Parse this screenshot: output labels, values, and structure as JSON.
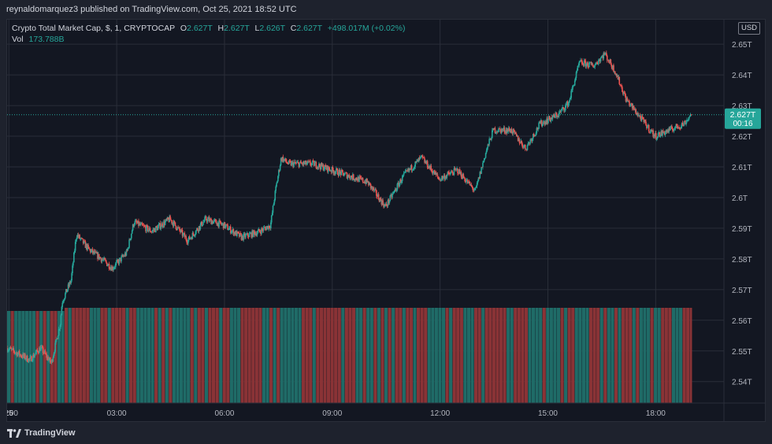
{
  "header": {
    "published_text": "reynaldomarquez3 published on TradingView.com, Oct 25, 2021 18:52 UTC"
  },
  "legend": {
    "symbol": "Crypto Total Market Cap, $, 1, CRYPTOCAP",
    "open_label": "O",
    "open_value": "2.627T",
    "high_label": "H",
    "high_value": "2.627T",
    "low_label": "L",
    "low_value": "2.626T",
    "close_label": "C",
    "close_value": "2.627T",
    "change": "+498.017M (+0.02%)",
    "vol_label": "Vol",
    "vol_value": "173.788B"
  },
  "scale": {
    "currency": "USD"
  },
  "price_tag": {
    "price": "2.627T",
    "countdown": "00:16"
  },
  "footer": {
    "brand": "TradingView"
  },
  "colors": {
    "up": "#26a69a",
    "down": "#ef5350",
    "vol_up": "#1f6b67",
    "vol_down": "#8a3336",
    "grid": "#2a2e39",
    "price_tag_bg": "#26a69a"
  },
  "chart_data": {
    "type": "candlestick",
    "ylim": [
      2.533,
      2.658
    ],
    "y_ticks": [
      2.54,
      2.55,
      2.56,
      2.57,
      2.58,
      2.59,
      2.6,
      2.61,
      2.62,
      2.63,
      2.64,
      2.65
    ],
    "y_tick_labels": [
      "2.54T",
      "2.55T",
      "2.56T",
      "2.57T",
      "2.58T",
      "2.59T",
      "2.6T",
      "2.61T",
      "2.62T",
      "2.63T",
      "2.64T",
      "2.65T"
    ],
    "x_hours_range": [
      -0.05,
      19.9
    ],
    "x_ticks": [
      0.0,
      3.0,
      6.0,
      9.0,
      12.0,
      15.0,
      18.0
    ],
    "x_tick_labels": [
      "25",
      "03:00",
      "06:00",
      "09:00",
      "12:00",
      "15:00",
      "18:00"
    ],
    "x_partial_label": ":00",
    "current_price": 2.627,
    "price_path": [
      [
        -0.05,
        2.551
      ],
      [
        0.3,
        2.549
      ],
      [
        0.6,
        2.547
      ],
      [
        0.9,
        2.551
      ],
      [
        1.2,
        2.546
      ],
      [
        1.45,
        2.559
      ],
      [
        1.5,
        2.566
      ],
      [
        1.75,
        2.573
      ],
      [
        1.9,
        2.588
      ],
      [
        2.25,
        2.583
      ],
      [
        2.6,
        2.58
      ],
      [
        2.9,
        2.577
      ],
      [
        3.3,
        2.582
      ],
      [
        3.5,
        2.592
      ],
      [
        4.0,
        2.589
      ],
      [
        4.5,
        2.593
      ],
      [
        5.0,
        2.586
      ],
      [
        5.5,
        2.593
      ],
      [
        6.0,
        2.591
      ],
      [
        6.5,
        2.587
      ],
      [
        7.0,
        2.589
      ],
      [
        7.3,
        2.591
      ],
      [
        7.45,
        2.603
      ],
      [
        7.6,
        2.613
      ],
      [
        7.8,
        2.611
      ],
      [
        8.5,
        2.611
      ],
      [
        9.0,
        2.609
      ],
      [
        10.0,
        2.605
      ],
      [
        10.5,
        2.597
      ],
      [
        11.0,
        2.607
      ],
      [
        11.5,
        2.613
      ],
      [
        12.0,
        2.606
      ],
      [
        12.5,
        2.609
      ],
      [
        13.0,
        2.602
      ],
      [
        13.3,
        2.615
      ],
      [
        13.5,
        2.622
      ],
      [
        14.0,
        2.622
      ],
      [
        14.4,
        2.616
      ],
      [
        14.8,
        2.624
      ],
      [
        15.3,
        2.627
      ],
      [
        15.6,
        2.631
      ],
      [
        15.9,
        2.644
      ],
      [
        16.3,
        2.643
      ],
      [
        16.6,
        2.647
      ],
      [
        16.9,
        2.641
      ],
      [
        17.2,
        2.632
      ],
      [
        17.6,
        2.626
      ],
      [
        18.0,
        2.62
      ],
      [
        18.4,
        2.622
      ],
      [
        18.8,
        2.624
      ],
      [
        19.0,
        2.627
      ]
    ]
  }
}
